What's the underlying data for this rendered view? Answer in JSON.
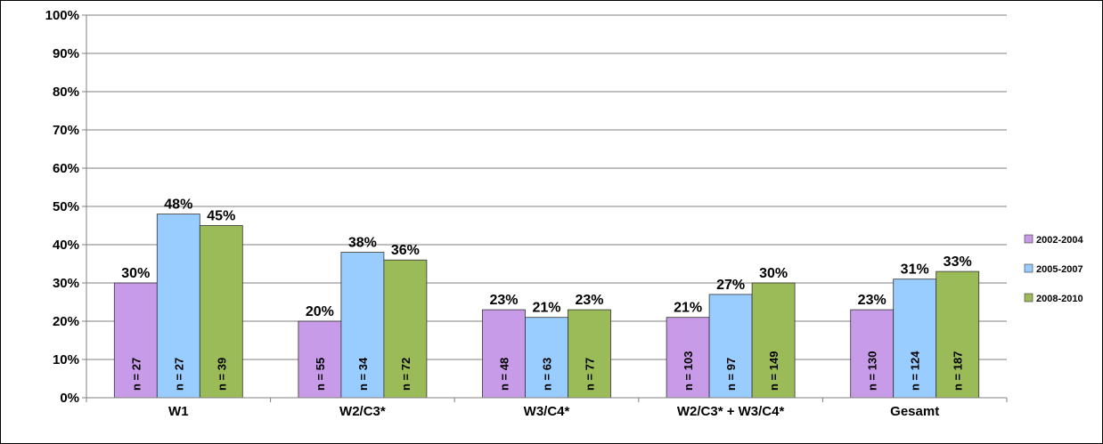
{
  "chart_data": {
    "type": "bar",
    "title": "",
    "xlabel": "",
    "ylabel": "",
    "ylim": [
      0,
      100
    ],
    "yticks": [
      "0%",
      "10%",
      "20%",
      "30%",
      "40%",
      "50%",
      "60%",
      "70%",
      "80%",
      "90%",
      "100%"
    ],
    "grid": true,
    "legend_position": "right",
    "categories": [
      "W1",
      "W2/C3*",
      "W3/C4*",
      "W2/C3* + W3/C4*",
      "Gesamt"
    ],
    "series": [
      {
        "name": "2002-2004",
        "color": "#c89be8",
        "values": [
          30,
          20,
          23,
          21,
          23
        ],
        "labels": [
          "30%",
          "20%",
          "23%",
          "21%",
          "23%"
        ],
        "n": [
          "n = 27",
          "n = 55",
          "n = 48",
          "n = 103",
          "n = 130"
        ]
      },
      {
        "name": "2005-2007",
        "color": "#99ccff",
        "values": [
          48,
          38,
          21,
          27,
          31
        ],
        "labels": [
          "48%",
          "38%",
          "21%",
          "27%",
          "31%"
        ],
        "n": [
          "n = 27",
          "n = 34",
          "n = 63",
          "n = 97",
          "n = 124"
        ]
      },
      {
        "name": "2008-2010",
        "color": "#9bbb59",
        "values": [
          45,
          36,
          23,
          30,
          33
        ],
        "labels": [
          "45%",
          "36%",
          "23%",
          "30%",
          "33%"
        ],
        "n": [
          "n = 39",
          "n = 72",
          "n = 77",
          "n = 149",
          "n = 187"
        ]
      }
    ]
  }
}
